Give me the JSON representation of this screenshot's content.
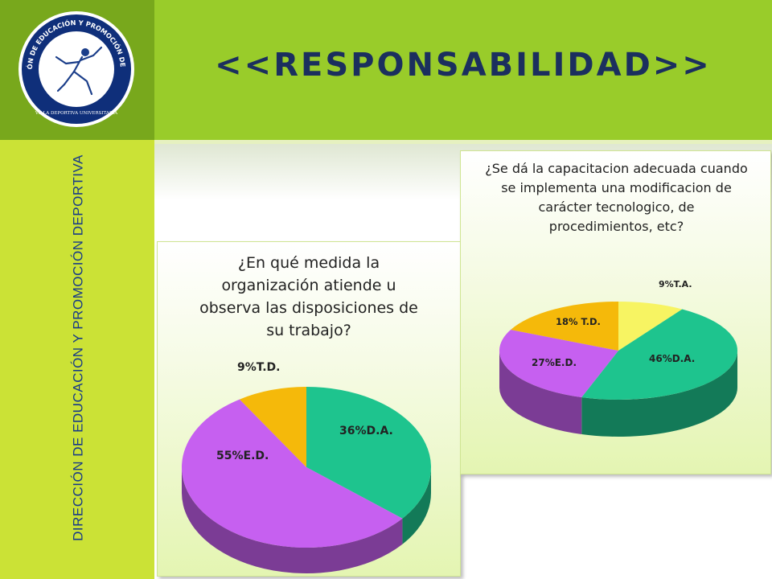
{
  "slide": {
    "title": "<<RESPONSABILIDAD>>",
    "side_label": "DIRECCIÓN DE EDUCACIÓN Y PROMOCIÓN DEPORTIVA"
  },
  "logo": {
    "ring_text": "DIRECCIÓN DE EDUCACIÓN Y PROMOCIÓN DEPORTIVA",
    "bottom_text": "VILLA DEPORTIVA UNIVERSITARIA"
  },
  "colors": {
    "D.A.": "#1ec48e",
    "E.D.": "#c660f0",
    "T.D.": "#f5b90a",
    "T.A.": "#f7f462"
  },
  "chart_data": [
    {
      "type": "pie",
      "title": "¿En qué medida la organización atiende u observa las disposiciones de su trabajo?",
      "slices": [
        {
          "key": "D.A.",
          "label": "36%D.A.",
          "value": 36
        },
        {
          "key": "E.D.",
          "label": "55%E.D.",
          "value": 55
        },
        {
          "key": "T.D.",
          "label": "9%T.D.",
          "value": 9
        }
      ]
    },
    {
      "type": "pie",
      "title": "¿Se dá la capacitacion adecuada cuando se implementa una modificacion de carácter tecnologico, de procedimientos, etc?",
      "slices": [
        {
          "key": "T.A.",
          "label": "9%T.A.",
          "value": 9
        },
        {
          "key": "D.A.",
          "label": "46%D.A.",
          "value": 46
        },
        {
          "key": "E.D.",
          "label": "27%E.D.",
          "value": 27
        },
        {
          "key": "T.D.",
          "label": "18% T.D.",
          "value": 18
        }
      ]
    }
  ]
}
